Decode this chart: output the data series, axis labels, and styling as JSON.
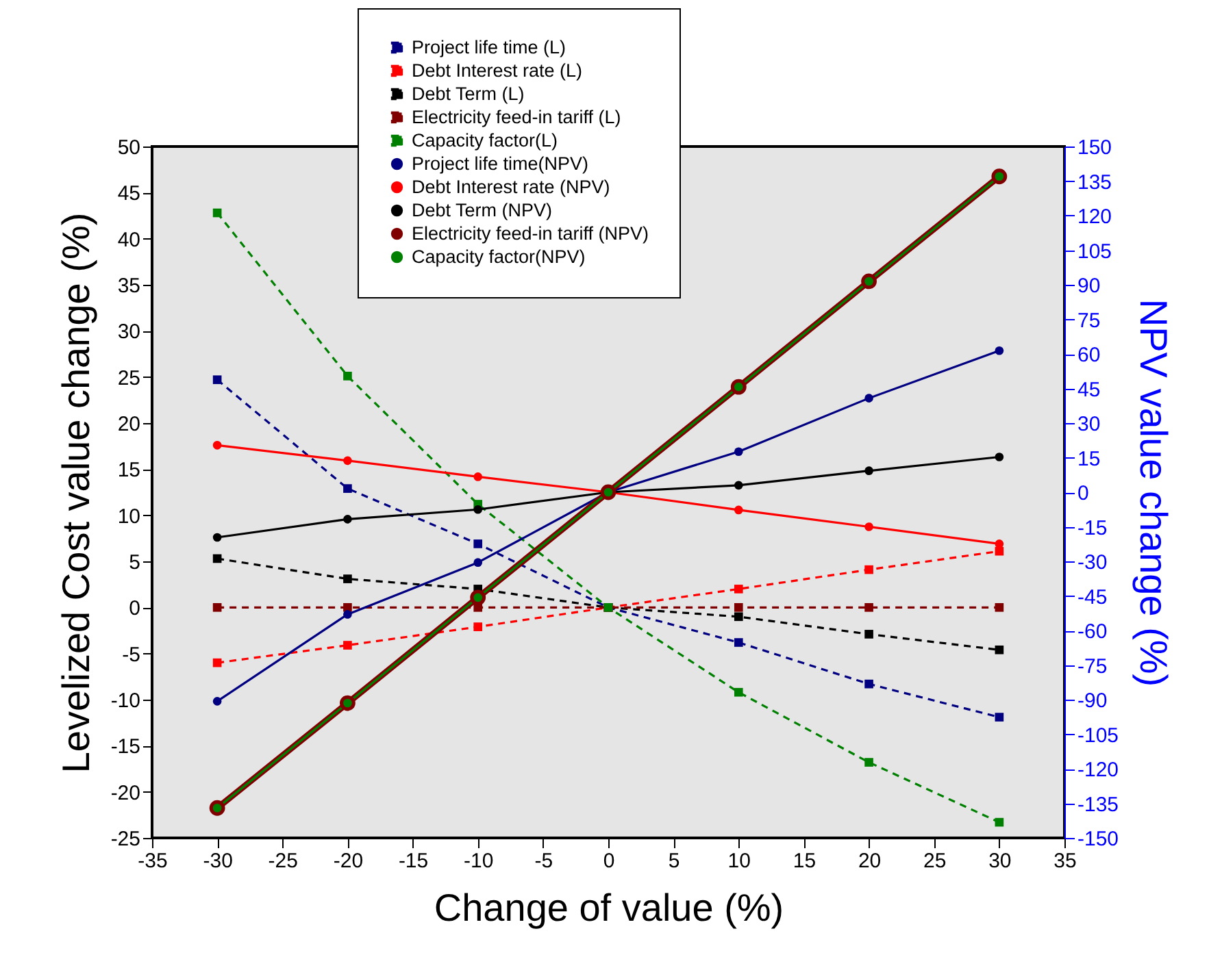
{
  "chart_data": {
    "type": "line",
    "xlabel": "Change of value (%)",
    "ylabel": "Levelized Cost value change (%)",
    "y2label": "NPV value change (%)",
    "x": [
      -30,
      -20,
      -10,
      0,
      10,
      20,
      30
    ],
    "xlim": [
      -35,
      35
    ],
    "xticks": [
      -35,
      -30,
      -25,
      -20,
      -15,
      -10,
      -5,
      0,
      5,
      10,
      15,
      20,
      25,
      30,
      35
    ],
    "ylim": [
      -25,
      50
    ],
    "yticks": [
      -25,
      -20,
      -15,
      -10,
      -5,
      0,
      5,
      10,
      15,
      20,
      25,
      30,
      35,
      40,
      45,
      50
    ],
    "y2lim": [
      -150,
      150
    ],
    "y2ticks": [
      -150,
      -135,
      -120,
      -105,
      -90,
      -75,
      -60,
      -45,
      -30,
      -15,
      0,
      15,
      30,
      45,
      60,
      75,
      90,
      105,
      120,
      135,
      150
    ],
    "grid": false,
    "legend": "top",
    "series": [
      {
        "name": "Project life time (L)",
        "color": "#000080",
        "line_style": "dashed",
        "marker": "square",
        "values": [
          24.7,
          12.9,
          6.9,
          0,
          -3.8,
          -8.3,
          -11.9
        ]
      },
      {
        "name": " Debt Interest rate (L)",
        "color": "#ff0000",
        "line_style": "dashed",
        "marker": "square",
        "values": [
          -6.0,
          -4.1,
          -2.1,
          0,
          2.0,
          4.1,
          6.1
        ]
      },
      {
        "name": "Debt Term (L)",
        "color": "#000000",
        "line_style": "dashed",
        "marker": "square",
        "values": [
          5.3,
          3.1,
          2.0,
          0,
          -1.0,
          -2.9,
          -4.6
        ]
      },
      {
        "name": "Electricity feed-in tariff (L)",
        "color": "#800000",
        "line_style": "dashed",
        "marker": "square",
        "values": [
          0,
          0,
          0,
          0,
          0,
          0,
          0
        ]
      },
      {
        "name": "Capacity factor(L)",
        "color": "#008000",
        "line_style": "dashed",
        "marker": "square",
        "values": [
          42.8,
          25.1,
          11.2,
          0,
          -9.2,
          -16.8,
          -23.3
        ]
      },
      {
        "name": "Project life time(NPV)",
        "color": "#000080",
        "line_style": "solid",
        "marker": "circle",
        "axis": "y2",
        "values": [
          -90.7,
          -53,
          -30.5,
          0,
          17.6,
          40.8,
          61.4
        ]
      },
      {
        "name": " Debt Interest rate (NPV)",
        "color": "#ff0000",
        "line_style": "solid",
        "marker": "circle",
        "axis": "y2",
        "values": [
          20.4,
          13.7,
          6.7,
          0,
          -7.7,
          -15,
          -22.4
        ]
      },
      {
        "name": "Debt Term (NPV)",
        "color": "#000000",
        "line_style": "solid",
        "marker": "circle",
        "axis": "y2",
        "values": [
          -19.6,
          -11.7,
          -7.5,
          0,
          3,
          9.3,
          15.3
        ]
      },
      {
        "name": "Electricity feed-in tariff (NPV)",
        "color": "#800000",
        "line_style": "solid",
        "marker": "circle",
        "axis": "y2",
        "values": [
          -137,
          -91.5,
          -45.7,
          0,
          45.7,
          91.5,
          137
        ]
      },
      {
        "name": "Capacity factor(NPV)",
        "color": "#008000",
        "line_style": "solid",
        "marker": "circle",
        "axis": "y2",
        "values": [
          -137,
          -91.5,
          -45.7,
          0,
          45.7,
          91.5,
          137
        ]
      }
    ]
  }
}
